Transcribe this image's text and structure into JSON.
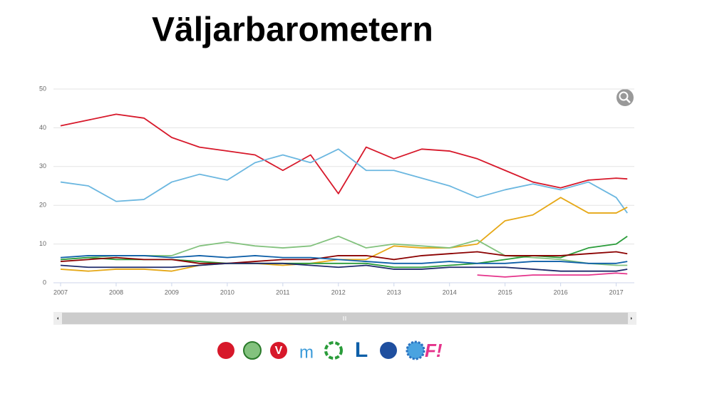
{
  "chart_data": {
    "type": "line",
    "title": "Väljarbarometern",
    "x": [
      2007,
      2007.5,
      2008,
      2008.5,
      2009,
      2009.5,
      2010,
      2010.5,
      2011,
      2011.5,
      2012,
      2012.5,
      2013,
      2013.5,
      2014,
      2014.5,
      2015,
      2015.5,
      2016,
      2016.5,
      2017,
      2017.2
    ],
    "xlim": [
      2007,
      2017.3
    ],
    "xticks": [
      2007,
      2008,
      2009,
      2010,
      2011,
      2012,
      2013,
      2014,
      2015,
      2016,
      2017
    ],
    "ylim": [
      0,
      50
    ],
    "yticks": [
      0,
      10,
      20,
      30,
      40,
      50
    ],
    "grid": true,
    "series": [
      {
        "color": "#d7182a",
        "values": [
          40.5,
          42,
          43.5,
          42.5,
          37.5,
          35,
          34,
          33,
          29,
          33,
          23,
          35,
          32,
          34.5,
          34,
          32,
          29,
          26,
          24.5,
          26.5,
          27,
          26.8
        ]
      },
      {
        "color": "#6bb7e0",
        "values": [
          26,
          25,
          21,
          21.5,
          26,
          28,
          26.5,
          31,
          33,
          31,
          34.5,
          29,
          29,
          27,
          25,
          22,
          24,
          25.5,
          24,
          26,
          22,
          18
        ]
      },
      {
        "color": "#e6a817",
        "values": [
          3.5,
          3,
          3.5,
          3.5,
          3,
          4.5,
          5,
          5,
          4.5,
          5,
          6,
          6,
          9.5,
          9,
          9,
          10,
          16,
          17.5,
          22,
          18,
          18,
          19.5
        ]
      },
      {
        "color": "#83c27e",
        "values": [
          6,
          6.5,
          7,
          7,
          7,
          9.5,
          10.5,
          9.5,
          9,
          9.5,
          12,
          9,
          10,
          9.5,
          9,
          11,
          7,
          6.5,
          6,
          5,
          4.5,
          4.5
        ]
      },
      {
        "color": "#2a9c3a",
        "values": [
          6,
          6.5,
          6,
          6,
          6,
          5.5,
          5,
          5,
          5,
          5,
          5,
          5,
          4,
          4,
          4.5,
          5,
          6,
          7,
          6.5,
          9,
          10,
          12
        ]
      },
      {
        "color": "#8b0000",
        "values": [
          5.5,
          6,
          6.5,
          6,
          6,
          5,
          5,
          5.5,
          6,
          6,
          7,
          7,
          6,
          7,
          7.5,
          8,
          7,
          7,
          7,
          7.5,
          8,
          7.5
        ]
      },
      {
        "color": "#0e5fa8",
        "values": [
          6.5,
          7,
          7,
          7,
          6.5,
          7,
          6.5,
          7,
          6.5,
          6.5,
          6,
          5.5,
          5,
          5,
          5.5,
          5,
          5,
          5.5,
          5.5,
          5,
          5,
          5.5
        ]
      },
      {
        "color": "#1f2b6b",
        "values": [
          4.5,
          4,
          4,
          4,
          4,
          4.5,
          5,
          5,
          5,
          4.5,
          4,
          4.5,
          3.5,
          3.5,
          4,
          4,
          4,
          3.5,
          3,
          3,
          3,
          3.5
        ]
      },
      {
        "color": "#e5338b",
        "values": [
          null,
          null,
          null,
          null,
          null,
          null,
          null,
          null,
          null,
          null,
          null,
          null,
          null,
          null,
          null,
          2,
          1.5,
          2,
          2,
          2,
          2.5,
          2.3
        ]
      }
    ]
  },
  "logos": {
    "v": "V",
    "m": "m",
    "l": "L",
    "fi": "F!"
  }
}
